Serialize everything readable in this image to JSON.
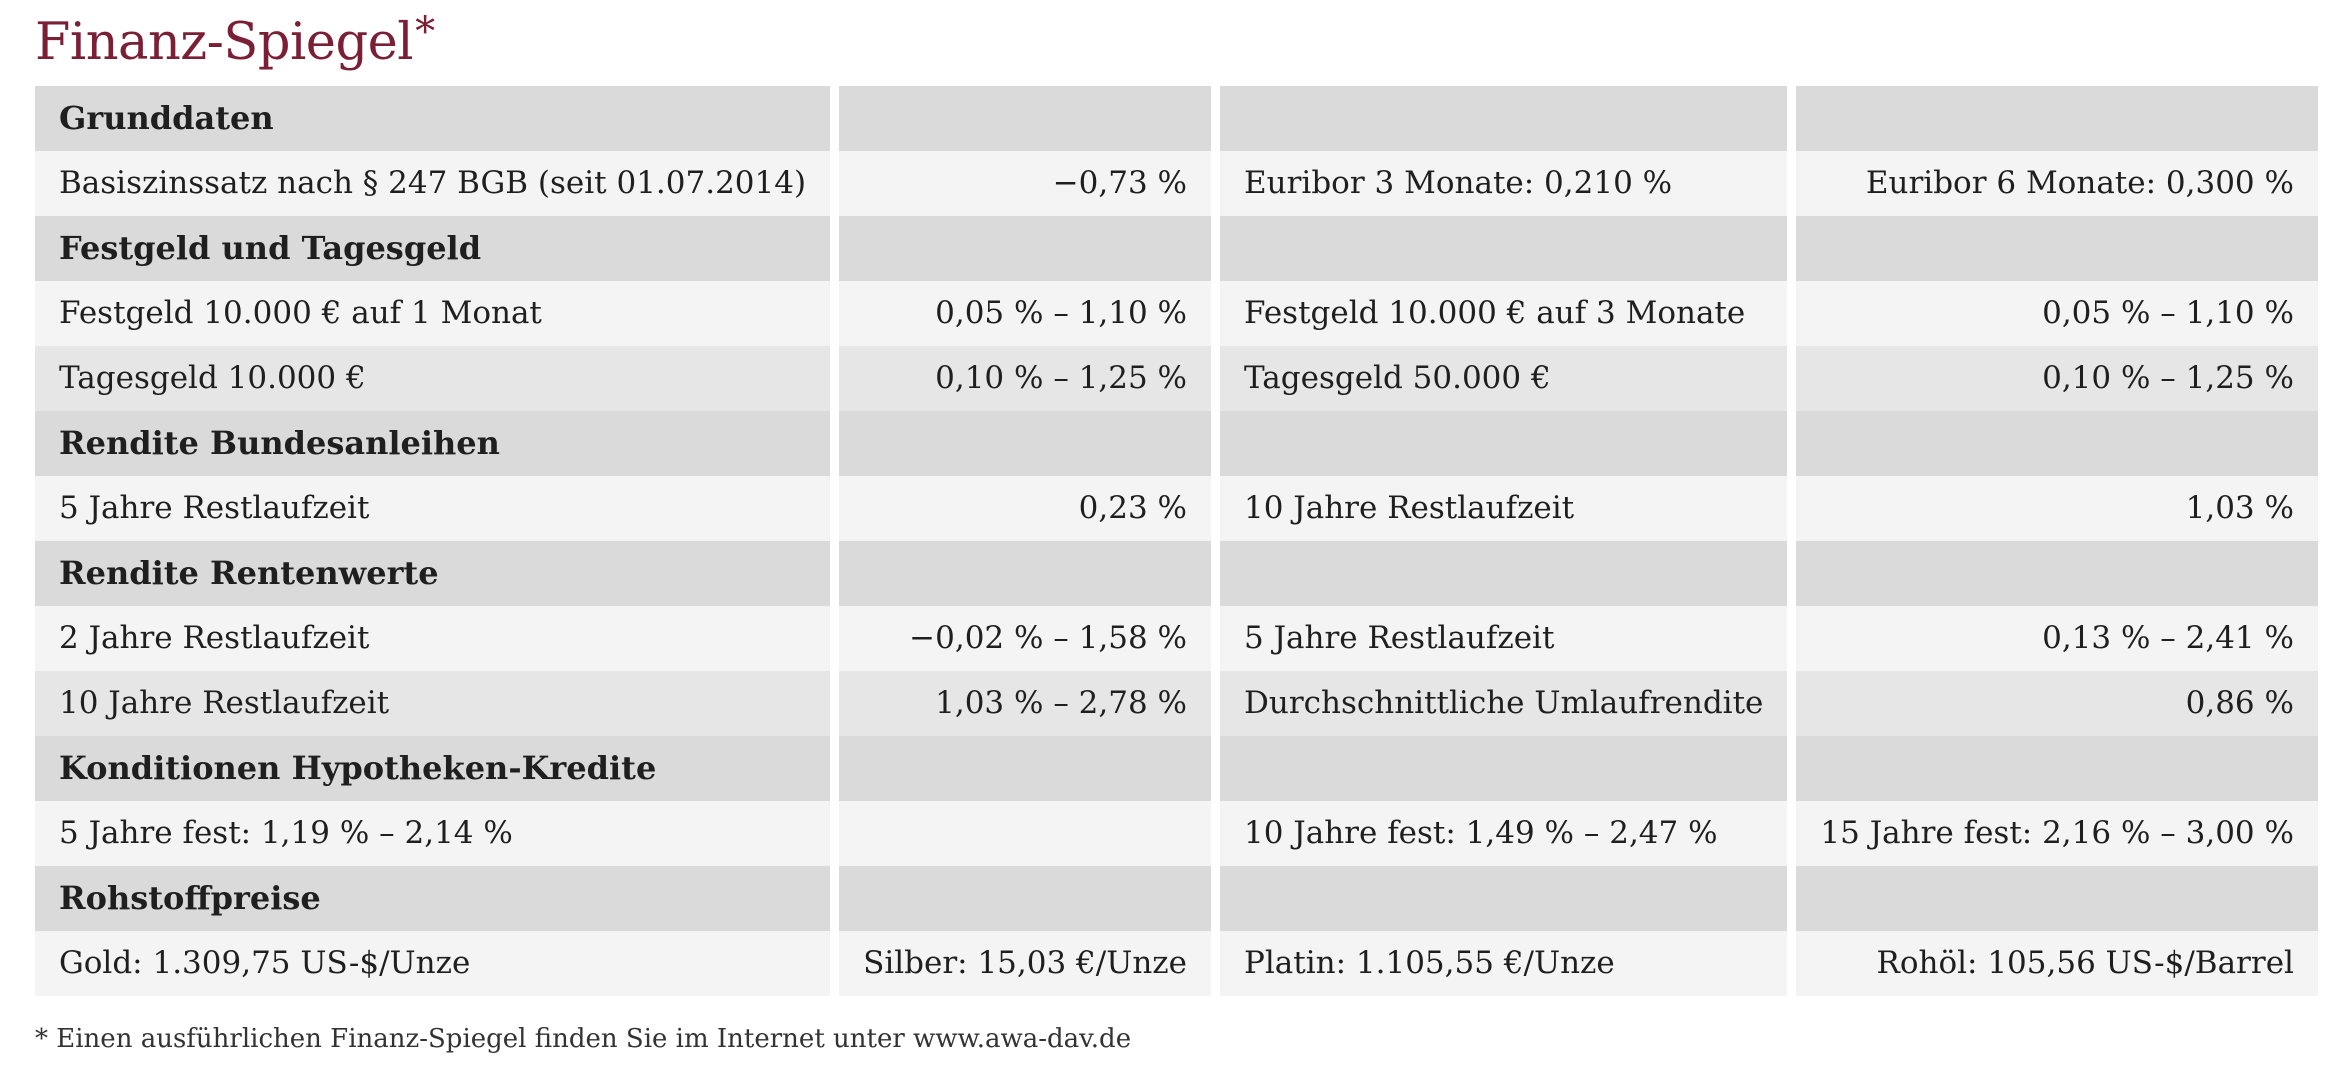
{
  "title": "Finanz-Spiegel",
  "title_marker": "*",
  "rows": [
    {
      "type": "section",
      "label": "Grunddaten"
    },
    {
      "type": "data",
      "shade": "light",
      "c1": "Basiszinssatz nach § 247 BGB (seit 01.07.2014)",
      "c2": "−0,73 %",
      "c3": "Euribor 3 Monate: 0,210 %",
      "c4": "Euribor 6 Monate: 0,300 %"
    },
    {
      "type": "section",
      "label": "Festgeld und Tagesgeld"
    },
    {
      "type": "data",
      "shade": "light",
      "c1": "Festgeld 10.000 € auf 1 Monat",
      "c2": "0,05 % – 1,10 %",
      "c3": "Festgeld 10.000 € auf 3 Monate",
      "c4": "0,05 % – 1,10 %"
    },
    {
      "type": "data",
      "shade": "dark",
      "c1": "Tagesgeld 10.000 €",
      "c2": "0,10 % – 1,25 %",
      "c3": "Tagesgeld 50.000 €",
      "c4": "0,10 % – 1,25 %"
    },
    {
      "type": "section",
      "label": "Rendite Bundesanleihen"
    },
    {
      "type": "data",
      "shade": "light",
      "c1": "5 Jahre Restlaufzeit",
      "c2": "0,23 %",
      "c3": "10 Jahre Restlaufzeit",
      "c4": "1,03 %"
    },
    {
      "type": "section",
      "label": "Rendite Rentenwerte"
    },
    {
      "type": "data",
      "shade": "light",
      "c1": "2 Jahre Restlaufzeit",
      "c2": "−0,02 % – 1,58 %",
      "c3": "5 Jahre Restlaufzeit",
      "c4": "0,13 % – 2,41 %"
    },
    {
      "type": "data",
      "shade": "dark",
      "c1": "10 Jahre Restlaufzeit",
      "c2": "1,03 % – 2,78 %",
      "c3": "Durchschnittliche Umlaufrendite",
      "c4": "0,86 %"
    },
    {
      "type": "section",
      "label": "Konditionen Hypotheken-Kredite"
    },
    {
      "type": "data",
      "shade": "light",
      "c1": "5 Jahre fest: 1,19 % – 2,14 %",
      "c2": "",
      "c3": "10 Jahre fest: 1,49 % – 2,47 %",
      "c4": "15 Jahre fest: 2,16 % – 3,00 %"
    },
    {
      "type": "section",
      "label": "Rohstoffpreise"
    },
    {
      "type": "data",
      "shade": "light",
      "c1": "Gold: 1.309,75 US-$/Unze",
      "c2": "Silber: 15,03 €/Unze",
      "c3": "Platin: 1.105,55 €/Unze",
      "c4": "Rohöl: 105,56 US-$/Barrel"
    }
  ],
  "footnote": "* Einen ausführlichen Finanz-Spiegel finden Sie im Internet unter www.awa-dav.de",
  "colors": {
    "title": "#7a1f35",
    "section_bg": "#dadada",
    "row_light": "#f4f4f4",
    "row_dark": "#e6e6e6"
  }
}
